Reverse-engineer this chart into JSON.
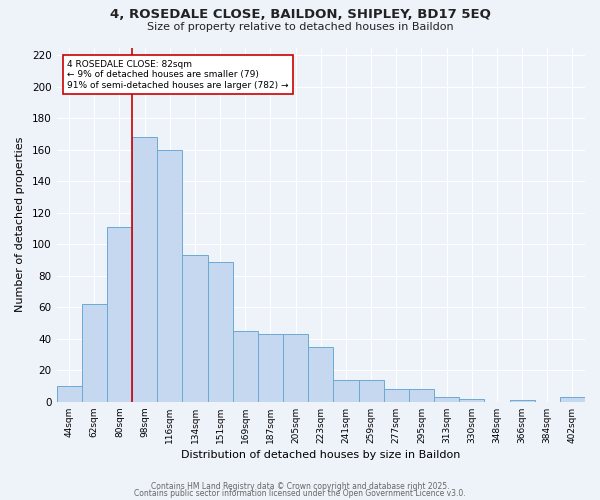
{
  "title_line1": "4, ROSEDALE CLOSE, BAILDON, SHIPLEY, BD17 5EQ",
  "title_line2": "Size of property relative to detached houses in Baildon",
  "xlabel": "Distribution of detached houses by size in Baildon",
  "ylabel": "Number of detached properties",
  "bar_labels": [
    "44sqm",
    "62sqm",
    "80sqm",
    "98sqm",
    "116sqm",
    "134sqm",
    "151sqm",
    "169sqm",
    "187sqm",
    "205sqm",
    "223sqm",
    "241sqm",
    "259sqm",
    "277sqm",
    "295sqm",
    "313sqm",
    "330sqm",
    "348sqm",
    "366sqm",
    "384sqm",
    "402sqm"
  ],
  "bar_values": [
    10,
    62,
    111,
    168,
    160,
    93,
    89,
    45,
    43,
    43,
    35,
    14,
    14,
    8,
    8,
    3,
    2,
    0,
    1,
    0,
    3
  ],
  "bar_color": "#c5d8ef",
  "bar_edge_color": "#6aaad4",
  "background_color": "#eef2f9",
  "grid_color": "#ffffff",
  "vline_color": "#cc0000",
  "vline_index": 2.5,
  "annotation_text": "4 ROSEDALE CLOSE: 82sqm\n← 9% of detached houses are smaller (79)\n91% of semi-detached houses are larger (782) →",
  "annotation_box_facecolor": "#ffffff",
  "annotation_box_edgecolor": "#cc0000",
  "ylim": [
    0,
    225
  ],
  "yticks": [
    0,
    20,
    40,
    60,
    80,
    100,
    120,
    140,
    160,
    180,
    200,
    220
  ],
  "footer_line1": "Contains HM Land Registry data © Crown copyright and database right 2025.",
  "footer_line2": "Contains public sector information licensed under the Open Government Licence v3.0.",
  "footer_color": "#666666"
}
